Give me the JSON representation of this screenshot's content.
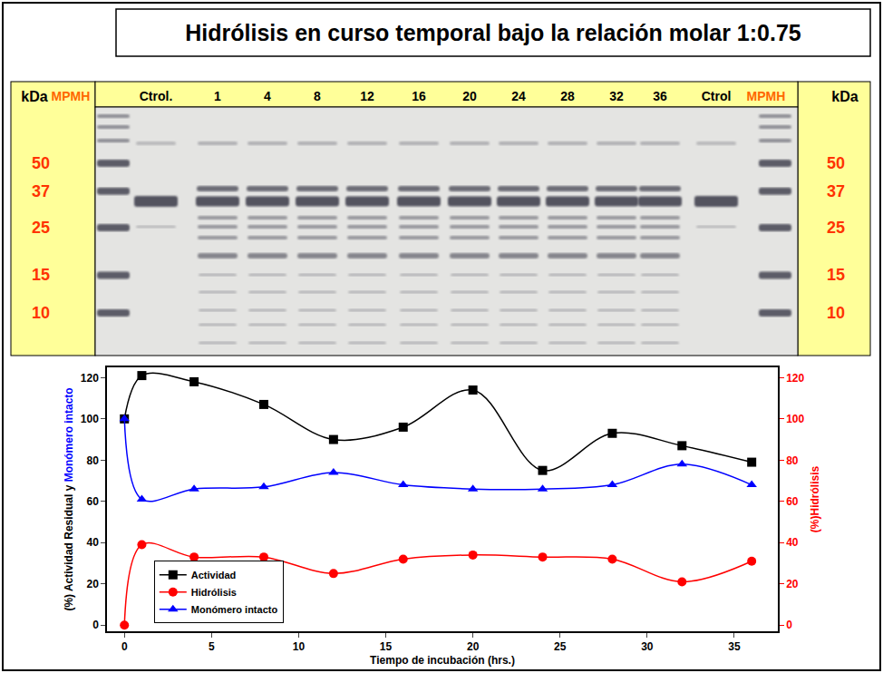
{
  "title": "Hidrólisis en curso temporal bajo la relación molar 1:0.75",
  "gel": {
    "unit_label": "kDa",
    "lanes": [
      "MPMH",
      "Ctrol.",
      "1",
      "4",
      "8",
      "12",
      "16",
      "20",
      "24",
      "28",
      "32",
      "36",
      "Ctrol",
      "MPMH"
    ],
    "marker_kda": [
      50,
      37,
      25,
      15,
      10
    ]
  },
  "chart_data": {
    "type": "line",
    "xlabel": "Tiempo de incubación (hrs.)",
    "ylabel": [
      {
        "text": "(%) Actividad Residual y ",
        "color": "#000000"
      },
      {
        "text": "Monómero intacto",
        "color": "#0000ff"
      }
    ],
    "y2label": "(%)Hidrólisis",
    "x": [
      0,
      1,
      4,
      8,
      12,
      16,
      20,
      24,
      28,
      32,
      36
    ],
    "series": [
      {
        "name": "Actividad",
        "color": "#000000",
        "marker": "square",
        "values": [
          100,
          121,
          118,
          107,
          90,
          96,
          114,
          75,
          93,
          87,
          79
        ]
      },
      {
        "name": "Hidrólisis",
        "color": "#ff0000",
        "marker": "circle",
        "axis": "y2",
        "values": [
          0,
          39,
          33,
          33,
          25,
          32,
          34,
          33,
          32,
          21,
          31
        ]
      },
      {
        "name": "Monómero intacto",
        "color": "#0000ff",
        "marker": "triangle-up",
        "values": [
          100,
          61,
          66,
          67,
          74,
          68,
          66,
          66,
          68,
          78,
          68
        ]
      }
    ],
    "xlim": [
      -1,
      37.5
    ],
    "xticks": [
      0,
      5,
      10,
      15,
      20,
      25,
      30,
      35
    ],
    "ylim": [
      -3,
      125
    ],
    "yticks": [
      0,
      20,
      40,
      60,
      80,
      100,
      120
    ],
    "y2lim": [
      -3,
      125
    ],
    "y2ticks": [
      0,
      20,
      40,
      60,
      80,
      100,
      120
    ],
    "legend": "lower left",
    "grid": false,
    "line_style": "spline"
  }
}
